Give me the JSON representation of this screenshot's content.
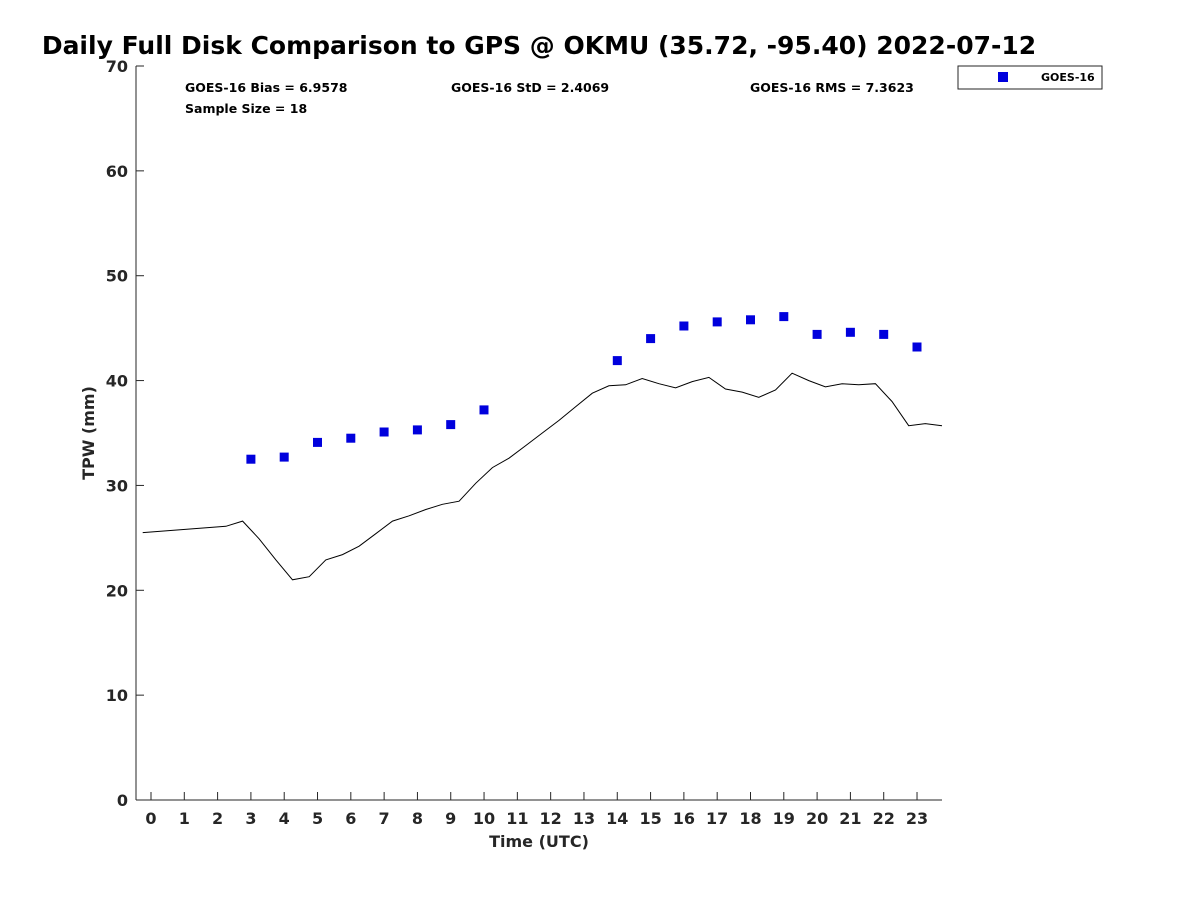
{
  "chart_data": {
    "type": "scatter",
    "title": "Daily Full Disk Comparison to GPS @ OKMU (35.72, -95.40) 2022-07-12",
    "xlabel": "Time (UTC)",
    "ylabel": "TPW (mm)",
    "xlim": [
      -0.45,
      23.75
    ],
    "ylim": [
      0,
      70
    ],
    "x_ticks": [
      0,
      1,
      2,
      3,
      4,
      5,
      6,
      7,
      8,
      9,
      10,
      11,
      12,
      13,
      14,
      15,
      16,
      17,
      18,
      19,
      20,
      21,
      22,
      23
    ],
    "y_ticks": [
      0,
      10,
      20,
      30,
      40,
      50,
      60,
      70
    ],
    "grid": false,
    "legend_position": "top-right, outside plot",
    "stats": {
      "bias": "GOES-16 Bias = 6.9578",
      "std": "GOES-16 StD = 2.4069",
      "rms": "GOES-16 RMS = 7.3623",
      "sample": "Sample Size = 18"
    },
    "series": [
      {
        "name": "GOES-16",
        "kind": "scatter",
        "color": "#0000dd",
        "marker": "square",
        "x": [
          3,
          4,
          5,
          6,
          7,
          8,
          9,
          10,
          14,
          15,
          16,
          17,
          18,
          19,
          20,
          21,
          22,
          23
        ],
        "y": [
          32.5,
          32.7,
          34.1,
          34.5,
          35.1,
          35.3,
          35.8,
          37.2,
          41.9,
          44.0,
          45.2,
          45.6,
          45.8,
          46.1,
          44.4,
          44.6,
          44.4,
          43.2
        ]
      },
      {
        "kind": "line",
        "color": "#000000",
        "x": [
          -0.25,
          2.25,
          2.75,
          3.25,
          3.75,
          4.25,
          4.75,
          5.25,
          5.75,
          6.25,
          6.75,
          7.25,
          7.75,
          8.25,
          8.75,
          9.25,
          9.75,
          10.25,
          10.75,
          11.25,
          11.75,
          12.25,
          12.75,
          13.25,
          13.75,
          14.25,
          14.75,
          15.25,
          15.75,
          16.25,
          16.75,
          17.25,
          17.75,
          18.25,
          18.75,
          19.25,
          19.75,
          20.25,
          20.75,
          21.25,
          21.75,
          22.25,
          22.75,
          23.25,
          23.75
        ],
        "y": [
          25.5,
          26.1,
          26.6,
          24.9,
          22.9,
          21.0,
          21.3,
          22.9,
          23.4,
          24.2,
          25.4,
          26.6,
          27.1,
          27.7,
          28.2,
          28.5,
          30.2,
          31.7,
          32.6,
          33.8,
          35.0,
          36.2,
          37.5,
          38.8,
          39.5,
          39.6,
          40.2,
          39.7,
          39.3,
          39.9,
          40.3,
          39.2,
          38.9,
          38.4,
          39.1,
          40.7,
          40.0,
          39.4,
          39.7,
          39.6,
          39.7,
          38.0,
          35.7,
          35.9,
          35.7
        ]
      }
    ]
  }
}
